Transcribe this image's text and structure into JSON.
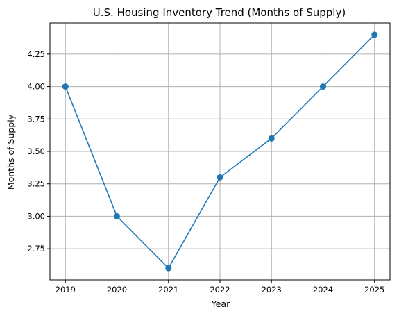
{
  "chart_data": {
    "type": "line",
    "title": "U.S. Housing Inventory Trend (Months of Supply)",
    "xlabel": "Year",
    "ylabel": "Months of Supply",
    "x": [
      2019,
      2020,
      2021,
      2022,
      2023,
      2024,
      2025
    ],
    "x_tick_labels": [
      "2019",
      "2020",
      "2021",
      "2022",
      "2023",
      "2024",
      "2025"
    ],
    "series": [
      {
        "values": [
          4.0,
          3.0,
          2.6,
          3.3,
          3.6,
          4.0,
          4.4
        ]
      }
    ],
    "y_ticks": [
      2.75,
      3.0,
      3.25,
      3.5,
      3.75,
      4.0,
      4.25
    ],
    "y_tick_labels": [
      "2.75",
      "3.00",
      "3.25",
      "3.50",
      "3.75",
      "4.00",
      "4.25"
    ],
    "xlim": [
      2018.7,
      2025.3
    ],
    "ylim": [
      2.51,
      4.49
    ],
    "grid": true,
    "color": "#1f77b4",
    "marker": "circle"
  }
}
